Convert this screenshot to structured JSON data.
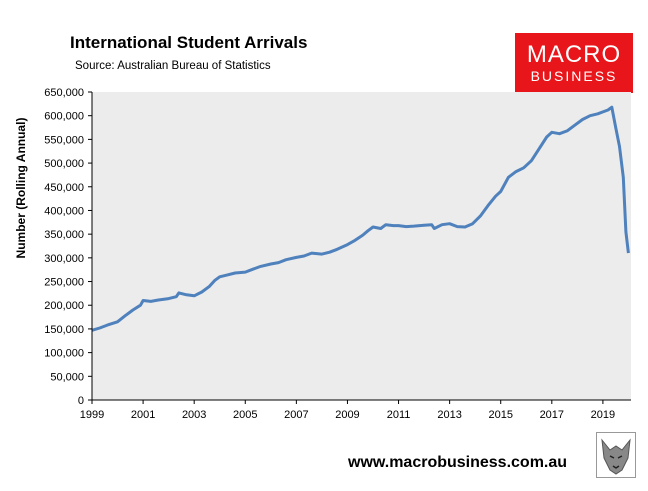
{
  "header": {
    "title": "International Student Arrivals",
    "source": "Source: Australian Bureau of Statistics"
  },
  "logo": {
    "line1": "MACRO",
    "line2": "BUSINESS",
    "color": "#e8161b"
  },
  "footer": {
    "url": "www.macrobusiness.com.au"
  },
  "colors": {
    "plot_bg": "#ececec",
    "line": "#4f81bd",
    "grid": "#ffffff"
  },
  "chart_data": {
    "type": "line",
    "title": "International Student Arrivals",
    "subtitle": "Source: Australian Bureau of Statistics",
    "xlabel": "",
    "ylabel": "Number (Rolling Annual)",
    "xlim": [
      1999,
      2020.1
    ],
    "ylim": [
      0,
      650000
    ],
    "grid": false,
    "x_ticks": [
      "1999",
      "2001",
      "2003",
      "2005",
      "2007",
      "2009",
      "2011",
      "2013",
      "2015",
      "2017",
      "2019"
    ],
    "y_ticks": [
      "0",
      "50,000",
      "100,000",
      "150,000",
      "200,000",
      "250,000",
      "300,000",
      "350,000",
      "400,000",
      "450,000",
      "500,000",
      "550,000",
      "600,000",
      "650,000"
    ],
    "y_tick_values": [
      0,
      50000,
      100000,
      150000,
      200000,
      250000,
      300000,
      350000,
      400000,
      450000,
      500000,
      550000,
      600000,
      650000
    ],
    "x_tick_values": [
      1999,
      2001,
      2003,
      2005,
      2007,
      2009,
      2011,
      2013,
      2015,
      2017,
      2019
    ],
    "series": [
      {
        "x": [
          1999.0,
          1999.3,
          1999.6,
          2000.0,
          2000.3,
          2000.6,
          2000.9,
          2001.0,
          2001.3,
          2001.6,
          2002.0,
          2002.3,
          2002.4,
          2002.7,
          2003.0,
          2003.3,
          2003.6,
          2003.8,
          2004.0,
          2004.3,
          2004.6,
          2005.0,
          2005.3,
          2005.6,
          2006.0,
          2006.3,
          2006.6,
          2007.0,
          2007.3,
          2007.6,
          2008.0,
          2008.3,
          2008.6,
          2009.0,
          2009.3,
          2009.6,
          2009.8,
          2010.0,
          2010.3,
          2010.5,
          2010.8,
          2011.0,
          2011.3,
          2011.6,
          2012.0,
          2012.3,
          2012.4,
          2012.7,
          2013.0,
          2013.3,
          2013.6,
          2013.9,
          2014.2,
          2014.5,
          2014.8,
          2015.0,
          2015.3,
          2015.6,
          2015.9,
          2016.2,
          2016.5,
          2016.8,
          2017.0,
          2017.3,
          2017.6,
          2017.9,
          2018.2,
          2018.5,
          2018.8,
          2019.0,
          2019.2,
          2019.35,
          2019.5,
          2019.65,
          2019.8,
          2019.9,
          2020.0
        ],
        "values": [
          147000,
          152000,
          158000,
          165000,
          178000,
          190000,
          200000,
          210000,
          208000,
          211000,
          214000,
          218000,
          226000,
          222000,
          220000,
          228000,
          240000,
          252000,
          260000,
          264000,
          268000,
          270000,
          276000,
          282000,
          287000,
          290000,
          296000,
          301000,
          304000,
          310000,
          308000,
          312000,
          318000,
          328000,
          337000,
          348000,
          357000,
          365000,
          362000,
          370000,
          368000,
          368000,
          366000,
          367000,
          369000,
          370000,
          362000,
          370000,
          372000,
          366000,
          365000,
          372000,
          388000,
          410000,
          430000,
          440000,
          470000,
          482000,
          490000,
          505000,
          530000,
          555000,
          565000,
          562000,
          568000,
          580000,
          592000,
          600000,
          604000,
          608000,
          612000,
          618000,
          575000,
          535000,
          470000,
          355000,
          310000
        ]
      }
    ]
  }
}
